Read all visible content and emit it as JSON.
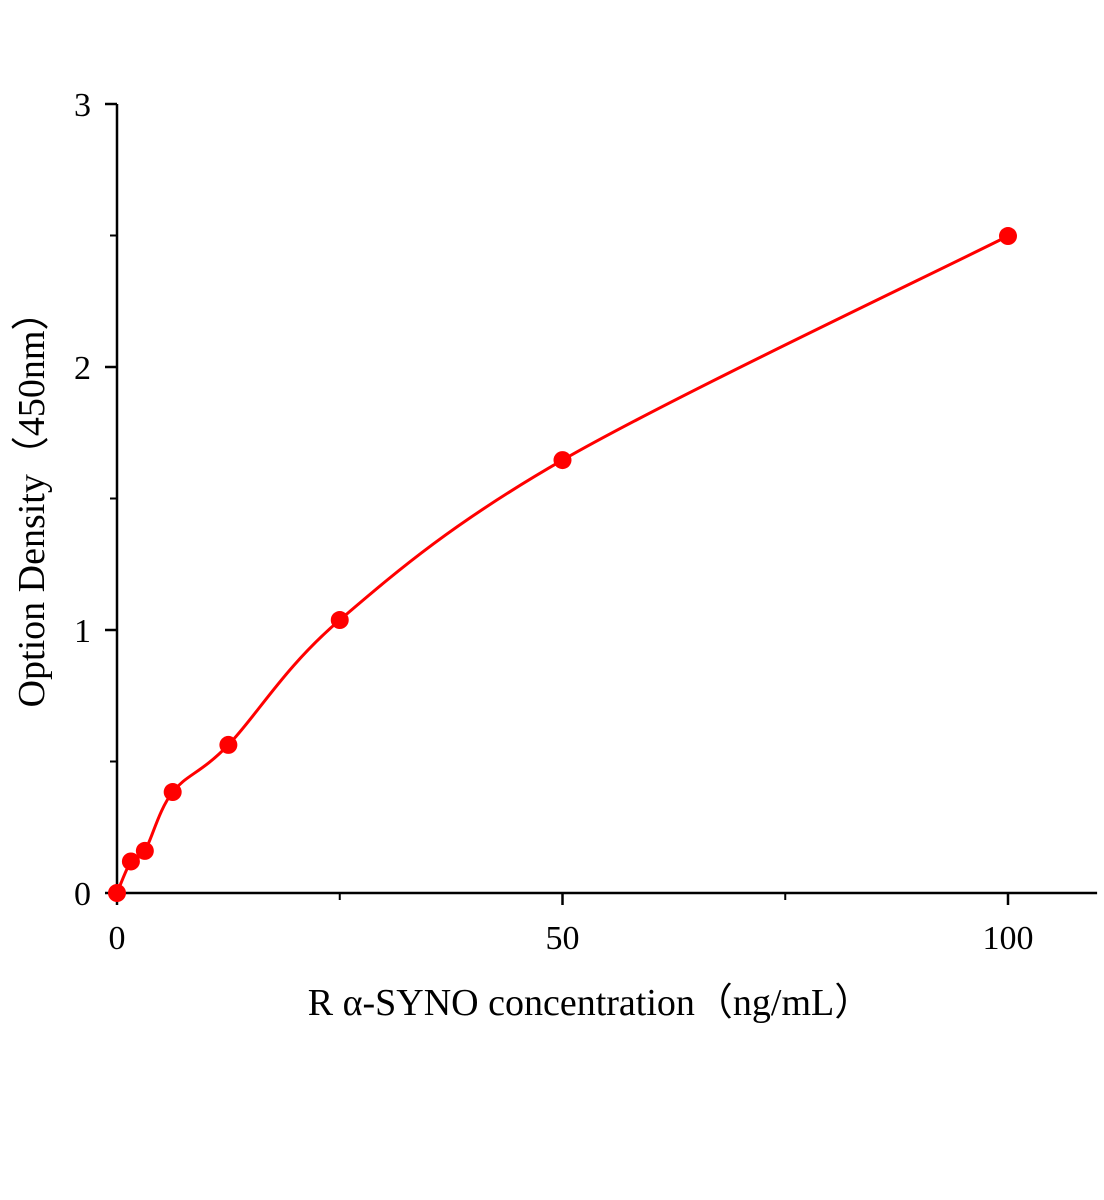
{
  "chart_data": {
    "type": "scatter",
    "title": "",
    "xlabel": "R α-SYNO concentration（ng/mL）",
    "ylabel": "Option Density（450nm）",
    "xlim": [
      0,
      110
    ],
    "ylim": [
      0,
      3
    ],
    "x_ticks": [
      0,
      50,
      100
    ],
    "x_minor_ticks": [
      25,
      75
    ],
    "y_ticks": [
      0,
      1,
      2,
      3
    ],
    "y_minor_ticks": [
      0.5,
      1.5,
      2.5
    ],
    "grid": false,
    "colors": {
      "series": "#ff0000",
      "axis": "#000000"
    },
    "series": [
      {
        "x": [
          0,
          1.56,
          3.125,
          6.25,
          12.5,
          25,
          50,
          100
        ],
        "y": [
          0,
          0.12,
          0.16,
          0.384,
          0.563,
          1.038,
          1.646,
          2.498
        ],
        "fit_curve": true
      }
    ]
  }
}
